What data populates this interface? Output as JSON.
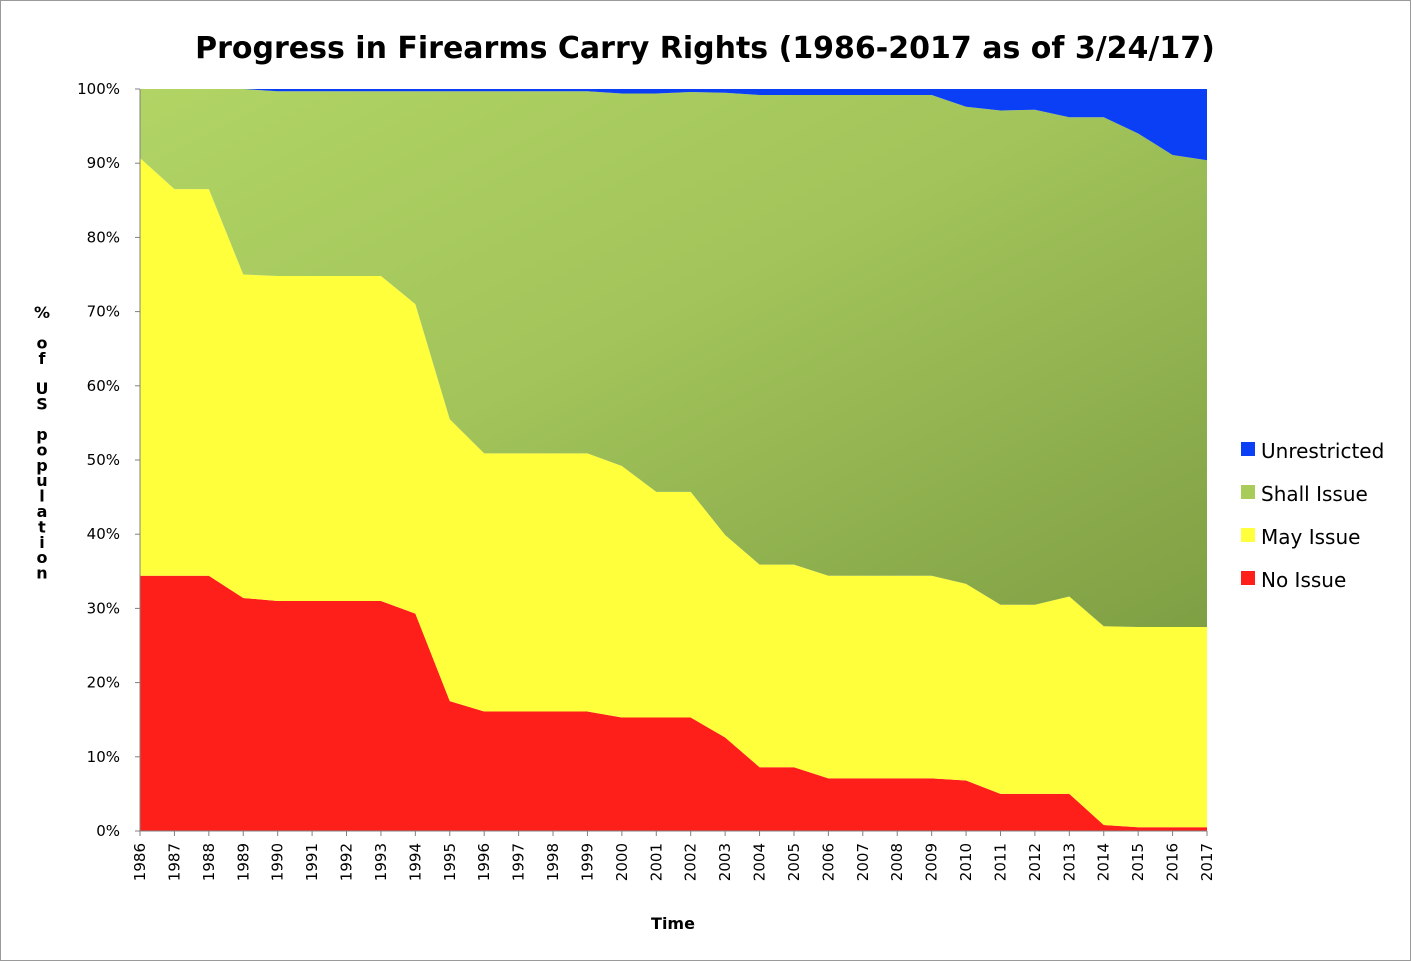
{
  "chart_data": {
    "type": "area",
    "stacked": true,
    "title": "Progress in Firearms Carry Rights (1986-2017 as of 3/24/17)",
    "xlabel": "Time",
    "ylabel": "% of US population",
    "ylim": [
      0,
      100
    ],
    "y_ticks": [
      "0%",
      "10%",
      "20%",
      "30%",
      "40%",
      "50%",
      "60%",
      "70%",
      "80%",
      "90%",
      "100%"
    ],
    "categories": [
      "1986",
      "1987",
      "1988",
      "1989",
      "1990",
      "1991",
      "1992",
      "1993",
      "1994",
      "1995",
      "1996",
      "1997",
      "1998",
      "1999",
      "2000",
      "2001",
      "2002",
      "2003",
      "2004",
      "2005",
      "2006",
      "2007",
      "2008",
      "2009",
      "2010",
      "2011",
      "2012",
      "2013",
      "2014",
      "2015",
      "2016",
      "2017"
    ],
    "series": [
      {
        "name": "No Issue",
        "color": "#ff1f1a",
        "values": [
          34.4,
          34.4,
          34.4,
          31.4,
          31.0,
          31.0,
          31.0,
          31.0,
          29.3,
          17.5,
          16.1,
          16.1,
          16.1,
          16.1,
          15.3,
          15.3,
          15.3,
          12.6,
          8.6,
          8.6,
          7.1,
          7.1,
          7.1,
          7.1,
          6.8,
          5.0,
          5.0,
          5.0,
          0.8,
          0.5,
          0.5,
          0.5
        ]
      },
      {
        "name": "May Issue",
        "color": "#ffff3b",
        "values": [
          56.3,
          52.1,
          52.1,
          43.6,
          43.8,
          43.8,
          43.8,
          43.8,
          41.7,
          38.0,
          34.8,
          34.8,
          34.8,
          34.8,
          33.9,
          30.4,
          30.4,
          27.3,
          27.3,
          27.3,
          27.3,
          27.3,
          27.3,
          27.3,
          26.5,
          25.5,
          25.5,
          26.6,
          26.8,
          27.0,
          27.0,
          27.0
        ]
      },
      {
        "name": "Shall Issue",
        "color": "#a8cb5a",
        "values": [
          9.3,
          13.5,
          13.5,
          25.0,
          24.9,
          24.9,
          24.9,
          24.9,
          28.7,
          44.2,
          48.8,
          48.8,
          48.8,
          48.8,
          50.2,
          53.7,
          53.9,
          59.6,
          63.3,
          63.3,
          64.8,
          64.8,
          64.8,
          64.8,
          64.3,
          66.6,
          66.7,
          64.6,
          68.6,
          66.5,
          63.6,
          62.9
        ]
      },
      {
        "name": "Unrestricted",
        "color": "#0b3ff5",
        "values": [
          0.0,
          0.0,
          0.0,
          0.0,
          0.3,
          0.3,
          0.3,
          0.3,
          0.3,
          0.3,
          0.3,
          0.3,
          0.3,
          0.3,
          0.6,
          0.6,
          0.4,
          0.5,
          0.8,
          0.8,
          0.8,
          0.8,
          0.8,
          0.8,
          2.4,
          2.9,
          2.8,
          3.8,
          3.8,
          6.0,
          8.9,
          9.6
        ]
      }
    ],
    "legend": [
      "Unrestricted",
      "Shall Issue",
      "May Issue",
      "No Issue"
    ],
    "legend_position": "right",
    "grid": false
  }
}
